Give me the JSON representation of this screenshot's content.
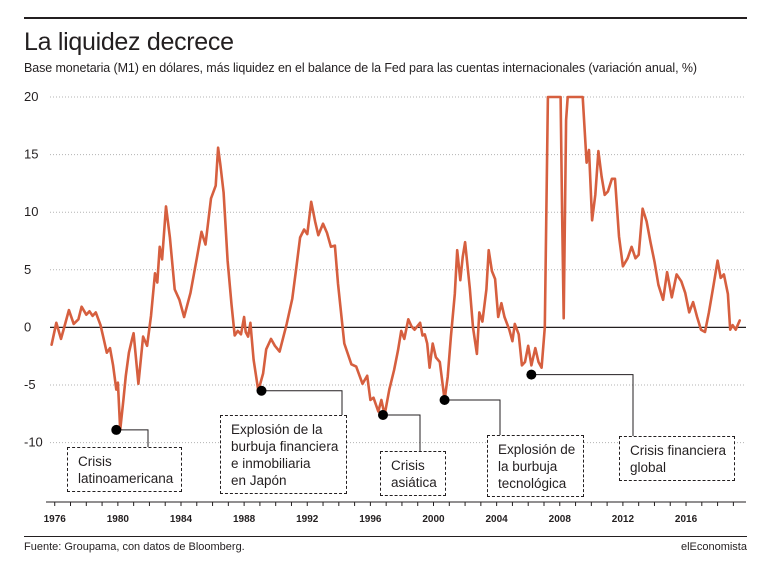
{
  "header": {
    "title": "La liquidez decrece",
    "subtitle": "Base monetaria (M1) en dólares, más liquidez en el balance de la Fed para las cuentas internacionales (variación anual, %)"
  },
  "footer": {
    "source": "Fuente: Groupama, con datos de Bloomberg.",
    "brand": "elEconomista"
  },
  "colors": {
    "line": "#d65f3f",
    "grid": "#b3b3b3",
    "text": "#231f20",
    "marker": "#000000"
  },
  "annotations": [
    {
      "label": "Crisis\nlatinoamericana",
      "year": 1979.9,
      "value": -8.9
    },
    {
      "label": "Explosión de la\nburbuja financiera\ne inmobiliaria\nen Japón",
      "year": 1989.1,
      "value": -5.5
    },
    {
      "label": "Crisis\nasiática",
      "year": 1996.8,
      "value": -7.6
    },
    {
      "label": "Explosión de\nla burbuja\ntecnológica",
      "year": 2000.7,
      "value": -6.3
    },
    {
      "label": "Crisis financiera\nglobal",
      "year": 2006.2,
      "value": -4.1
    }
  ],
  "chart_data": {
    "type": "line",
    "title": "La liquidez decrece",
    "subtitle": "Base monetaria (M1) en dólares, más liquidez en el balance de la Fed para las cuentas internacionales (variación anual, %)",
    "xlabel": "",
    "ylabel": "",
    "xlim": [
      1975.7,
      2019.8
    ],
    "ylim": [
      -15,
      20
    ],
    "yticks": [
      20,
      15,
      10,
      5,
      0,
      -5,
      -10
    ],
    "xticks": [
      1976,
      1980,
      1984,
      1988,
      1992,
      1996,
      2000,
      2004,
      2008,
      2012,
      2016
    ],
    "grid": "horizontal dotted",
    "series": [
      {
        "points": [
          [
            1975.8,
            -1.5
          ],
          [
            1976.1,
            0.4
          ],
          [
            1976.4,
            -1.0
          ],
          [
            1976.6,
            0.0
          ],
          [
            1976.9,
            1.5
          ],
          [
            1977.2,
            0.3
          ],
          [
            1977.5,
            0.7
          ],
          [
            1977.7,
            1.8
          ],
          [
            1978.0,
            1.1
          ],
          [
            1978.2,
            1.4
          ],
          [
            1978.4,
            1.0
          ],
          [
            1978.6,
            1.3
          ],
          [
            1978.9,
            0.2
          ],
          [
            1979.1,
            -1.0
          ],
          [
            1979.3,
            -2.2
          ],
          [
            1979.5,
            -1.8
          ],
          [
            1979.7,
            -3.3
          ],
          [
            1979.9,
            -5.4
          ],
          [
            1980.0,
            -4.8
          ],
          [
            1980.15,
            -8.9
          ],
          [
            1980.35,
            -6.3
          ],
          [
            1980.5,
            -4.2
          ],
          [
            1980.7,
            -2.2
          ],
          [
            1980.9,
            -1.0
          ],
          [
            1981.0,
            -0.5
          ],
          [
            1981.3,
            -4.9
          ],
          [
            1981.6,
            -0.8
          ],
          [
            1981.85,
            -1.6
          ],
          [
            1982.1,
            1.0
          ],
          [
            1982.35,
            4.7
          ],
          [
            1982.5,
            3.9
          ],
          [
            1982.65,
            7.0
          ],
          [
            1982.8,
            5.9
          ],
          [
            1983.05,
            10.5
          ],
          [
            1983.3,
            7.8
          ],
          [
            1983.6,
            3.3
          ],
          [
            1983.9,
            2.4
          ],
          [
            1984.2,
            0.9
          ],
          [
            1984.6,
            3.0
          ],
          [
            1985.0,
            6.0
          ],
          [
            1985.3,
            8.3
          ],
          [
            1985.55,
            7.2
          ],
          [
            1985.9,
            11.2
          ],
          [
            1986.2,
            12.3
          ],
          [
            1986.35,
            15.6
          ],
          [
            1986.5,
            14.1
          ],
          [
            1986.7,
            11.7
          ],
          [
            1986.95,
            5.8
          ],
          [
            1987.2,
            2.0
          ],
          [
            1987.4,
            -0.7
          ],
          [
            1987.6,
            -0.3
          ],
          [
            1987.8,
            -0.6
          ],
          [
            1988.0,
            0.9
          ],
          [
            1988.1,
            -0.4
          ],
          [
            1988.25,
            -0.8
          ],
          [
            1988.4,
            0.4
          ],
          [
            1988.6,
            -2.8
          ],
          [
            1988.9,
            -5.5
          ],
          [
            1989.2,
            -4.0
          ],
          [
            1989.4,
            -1.9
          ],
          [
            1989.7,
            -1.0
          ],
          [
            1989.95,
            -1.6
          ],
          [
            1990.25,
            -2.1
          ],
          [
            1990.7,
            0.3
          ],
          [
            1991.05,
            2.5
          ],
          [
            1991.3,
            5.1
          ],
          [
            1991.55,
            7.8
          ],
          [
            1991.8,
            8.5
          ],
          [
            1992.0,
            8.1
          ],
          [
            1992.25,
            10.9
          ],
          [
            1992.5,
            9.2
          ],
          [
            1992.7,
            8.0
          ],
          [
            1993.0,
            9.0
          ],
          [
            1993.25,
            8.2
          ],
          [
            1993.5,
            7.0
          ],
          [
            1993.75,
            7.1
          ],
          [
            1993.95,
            3.8
          ],
          [
            1994.35,
            -1.4
          ],
          [
            1994.8,
            -3.2
          ],
          [
            1995.1,
            -3.4
          ],
          [
            1995.5,
            -4.9
          ],
          [
            1995.8,
            -4.2
          ],
          [
            1996.0,
            -6.3
          ],
          [
            1996.2,
            -6.1
          ],
          [
            1996.5,
            -7.3
          ],
          [
            1996.7,
            -6.3
          ],
          [
            1996.9,
            -7.6
          ],
          [
            1997.2,
            -5.4
          ],
          [
            1997.5,
            -3.7
          ],
          [
            1997.75,
            -2.0
          ],
          [
            1997.95,
            -0.3
          ],
          [
            1998.15,
            -1.0
          ],
          [
            1998.4,
            0.7
          ],
          [
            1998.6,
            0.1
          ],
          [
            1998.8,
            -0.2
          ],
          [
            1999.15,
            0.4
          ],
          [
            1999.3,
            -0.7
          ],
          [
            1999.45,
            -0.6
          ],
          [
            1999.6,
            -1.4
          ],
          [
            1999.75,
            -3.5
          ],
          [
            1999.95,
            -1.4
          ],
          [
            2000.15,
            -2.6
          ],
          [
            2000.4,
            -3.0
          ],
          [
            2000.7,
            -6.3
          ],
          [
            2000.9,
            -4.3
          ],
          [
            2001.1,
            -0.8
          ],
          [
            2001.35,
            2.9
          ],
          [
            2001.5,
            6.7
          ],
          [
            2001.7,
            4.1
          ],
          [
            2001.85,
            6.1
          ],
          [
            2002.0,
            7.4
          ],
          [
            2002.3,
            3.4
          ],
          [
            2002.5,
            0.0
          ],
          [
            2002.75,
            -2.3
          ],
          [
            2002.9,
            1.3
          ],
          [
            2003.1,
            0.5
          ],
          [
            2003.35,
            3.3
          ],
          [
            2003.5,
            6.7
          ],
          [
            2003.7,
            4.9
          ],
          [
            2003.9,
            4.2
          ],
          [
            2004.1,
            0.9
          ],
          [
            2004.3,
            2.1
          ],
          [
            2004.5,
            0.9
          ],
          [
            2004.8,
            -0.2
          ],
          [
            2005.0,
            -1.2
          ],
          [
            2005.15,
            0.3
          ],
          [
            2005.4,
            -0.6
          ],
          [
            2005.6,
            -3.3
          ],
          [
            2005.8,
            -3.0
          ],
          [
            2006.0,
            -1.6
          ],
          [
            2006.2,
            -3.3
          ],
          [
            2006.45,
            -1.8
          ],
          [
            2006.65,
            -3.0
          ],
          [
            2006.85,
            -3.5
          ],
          [
            2007.05,
            0.0
          ],
          [
            2007.25,
            20.0
          ],
          [
            2007.3,
            20.0
          ],
          [
            2007.6,
            20.0
          ],
          [
            2008.05,
            20.0
          ],
          [
            2008.15,
            10.0
          ],
          [
            2008.25,
            0.8
          ],
          [
            2008.4,
            18.0
          ],
          [
            2008.5,
            20.0
          ],
          [
            2009.45,
            20.0
          ],
          [
            2009.7,
            14.3
          ],
          [
            2009.85,
            15.4
          ],
          [
            2010.05,
            9.3
          ],
          [
            2010.25,
            11.5
          ],
          [
            2010.45,
            15.3
          ],
          [
            2010.65,
            13.1
          ],
          [
            2010.85,
            11.5
          ],
          [
            2011.05,
            11.8
          ],
          [
            2011.3,
            12.9
          ],
          [
            2011.5,
            12.9
          ],
          [
            2011.75,
            7.9
          ],
          [
            2012.0,
            5.3
          ],
          [
            2012.3,
            6.0
          ],
          [
            2012.55,
            7.0
          ],
          [
            2012.8,
            6.0
          ],
          [
            2013.0,
            6.3
          ],
          [
            2013.25,
            10.3
          ],
          [
            2013.5,
            9.2
          ],
          [
            2013.75,
            7.4
          ],
          [
            2014.0,
            5.7
          ],
          [
            2014.25,
            3.7
          ],
          [
            2014.55,
            2.4
          ],
          [
            2014.8,
            4.8
          ],
          [
            2015.1,
            2.6
          ],
          [
            2015.4,
            4.6
          ],
          [
            2015.7,
            4.0
          ],
          [
            2015.95,
            3.0
          ],
          [
            2016.2,
            1.3
          ],
          [
            2016.45,
            2.2
          ],
          [
            2016.7,
            0.9
          ],
          [
            2016.95,
            -0.2
          ],
          [
            2017.2,
            -0.4
          ],
          [
            2017.45,
            1.3
          ],
          [
            2017.75,
            3.7
          ],
          [
            2018.0,
            5.8
          ],
          [
            2018.2,
            4.3
          ],
          [
            2018.4,
            4.6
          ],
          [
            2018.65,
            2.9
          ],
          [
            2018.8,
            -0.2
          ],
          [
            2018.95,
            0.2
          ],
          [
            2019.15,
            -0.2
          ],
          [
            2019.4,
            0.6
          ]
        ]
      }
    ]
  }
}
